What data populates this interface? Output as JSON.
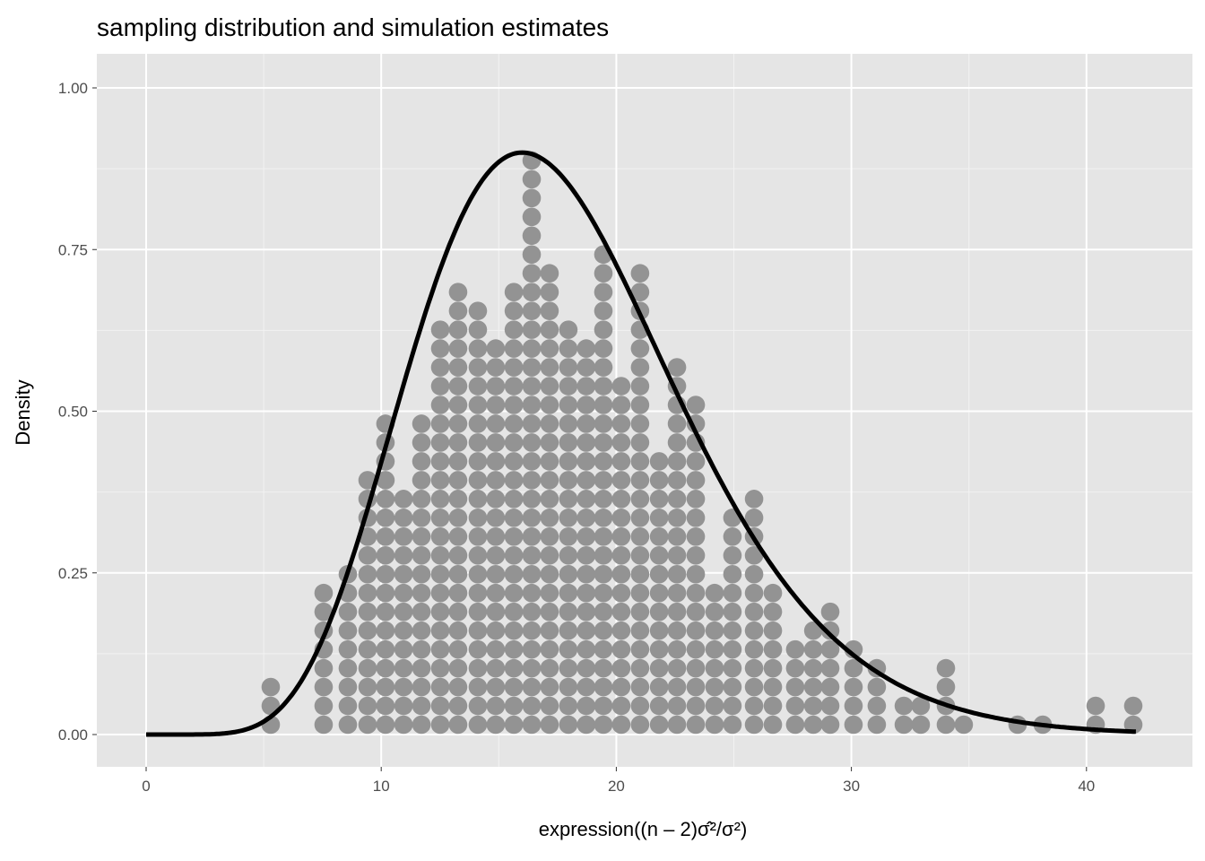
{
  "chart_data": {
    "type": "dotplot",
    "title": "sampling distribution and simulation estimates",
    "xlabel": "expression((n – 2)σ̂²/σ²)",
    "ylabel": "Density",
    "xlim": [
      -2.1,
      44.5
    ],
    "ylim": [
      -0.045,
      1.06
    ],
    "x_ticks": [
      0,
      10,
      20,
      30,
      40
    ],
    "x_tick_labels": [
      "0",
      "10",
      "20",
      "30",
      "40"
    ],
    "y_ticks": [
      0,
      0.25,
      0.5,
      0.75,
      1.0
    ],
    "y_tick_labels": [
      "0.00",
      "0.25",
      "0.50",
      "0.75",
      "1.00"
    ],
    "grid": true,
    "dots": {
      "color": "#939393",
      "bin_centers": [
        5.3,
        7.55,
        8.58,
        9.42,
        10.18,
        10.95,
        11.71,
        12.51,
        13.27,
        14.11,
        14.87,
        15.64,
        16.4,
        17.16,
        17.96,
        18.72,
        19.45,
        20.21,
        21.01,
        21.82,
        22.58,
        23.38,
        24.18,
        24.94,
        25.86,
        26.66,
        27.61,
        28.38,
        29.1,
        30.09,
        31.08,
        32.23,
        32.95,
        34.02,
        34.78,
        37.07,
        38.14,
        40.39,
        41.99
      ],
      "counts": [
        3,
        8,
        9,
        14,
        17,
        13,
        17,
        22,
        24,
        23,
        21,
        24,
        31,
        25,
        22,
        21,
        26,
        19,
        25,
        15,
        20,
        18,
        8,
        12,
        13,
        8,
        5,
        6,
        7,
        5,
        4,
        2,
        2,
        4,
        1,
        1,
        1,
        2,
        2
      ]
    },
    "curve": {
      "color": "#000000",
      "distribution": "chi-square",
      "df": 18,
      "x": [
        0,
        2,
        4,
        6,
        8,
        10,
        12,
        14,
        16,
        18,
        20,
        22,
        24,
        26,
        28,
        30,
        32,
        34,
        36,
        38,
        40,
        42
      ],
      "y": [
        0,
        0.0001,
        0.0055,
        0.052,
        0.192,
        0.421,
        0.666,
        0.841,
        0.9,
        0.849,
        0.726,
        0.572,
        0.423,
        0.295,
        0.196,
        0.125,
        0.077,
        0.046,
        0.027,
        0.015,
        0.008,
        0.005
      ]
    }
  }
}
